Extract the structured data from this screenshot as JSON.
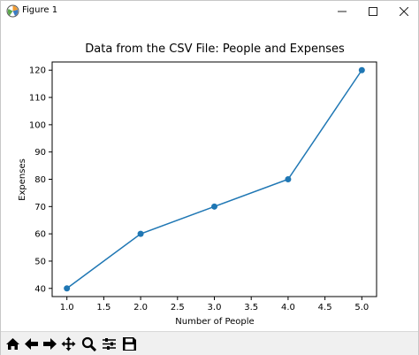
{
  "window": {
    "title": "Figure 1",
    "controls": {
      "minimize": "minimize-icon",
      "maximize": "maximize-icon",
      "close": "close-icon"
    }
  },
  "toolbar": {
    "buttons": [
      {
        "name": "home-button",
        "icon": "home-icon"
      },
      {
        "name": "back-button",
        "icon": "arrow-left-icon"
      },
      {
        "name": "forward-button",
        "icon": "arrow-right-icon"
      },
      {
        "name": "pan-button",
        "icon": "move-icon"
      },
      {
        "name": "zoom-button",
        "icon": "magnifier-icon"
      },
      {
        "name": "configure-subplots-button",
        "icon": "sliders-icon"
      },
      {
        "name": "save-button",
        "icon": "floppy-disk-icon"
      }
    ]
  },
  "chart_data": {
    "type": "line",
    "title": "Data from the CSV File: People and Expenses",
    "xlabel": "Number of People",
    "ylabel": "Expenses",
    "x": [
      1.0,
      2.0,
      3.0,
      4.0,
      5.0
    ],
    "y": [
      40,
      60,
      70,
      80,
      120
    ],
    "xlim": [
      0.8,
      5.2
    ],
    "ylim": [
      37,
      123
    ],
    "xticks": [
      "1.0",
      "1.5",
      "2.0",
      "2.5",
      "3.0",
      "3.5",
      "4.0",
      "4.5",
      "5.0"
    ],
    "xtick_values": [
      1.0,
      1.5,
      2.0,
      2.5,
      3.0,
      3.5,
      4.0,
      4.5,
      5.0
    ],
    "yticks": [
      "40",
      "50",
      "60",
      "70",
      "80",
      "90",
      "100",
      "110",
      "120"
    ],
    "ytick_values": [
      40,
      50,
      60,
      70,
      80,
      90,
      100,
      110,
      120
    ],
    "line_color": "#1f77b4",
    "marker": "circle",
    "grid": false
  }
}
